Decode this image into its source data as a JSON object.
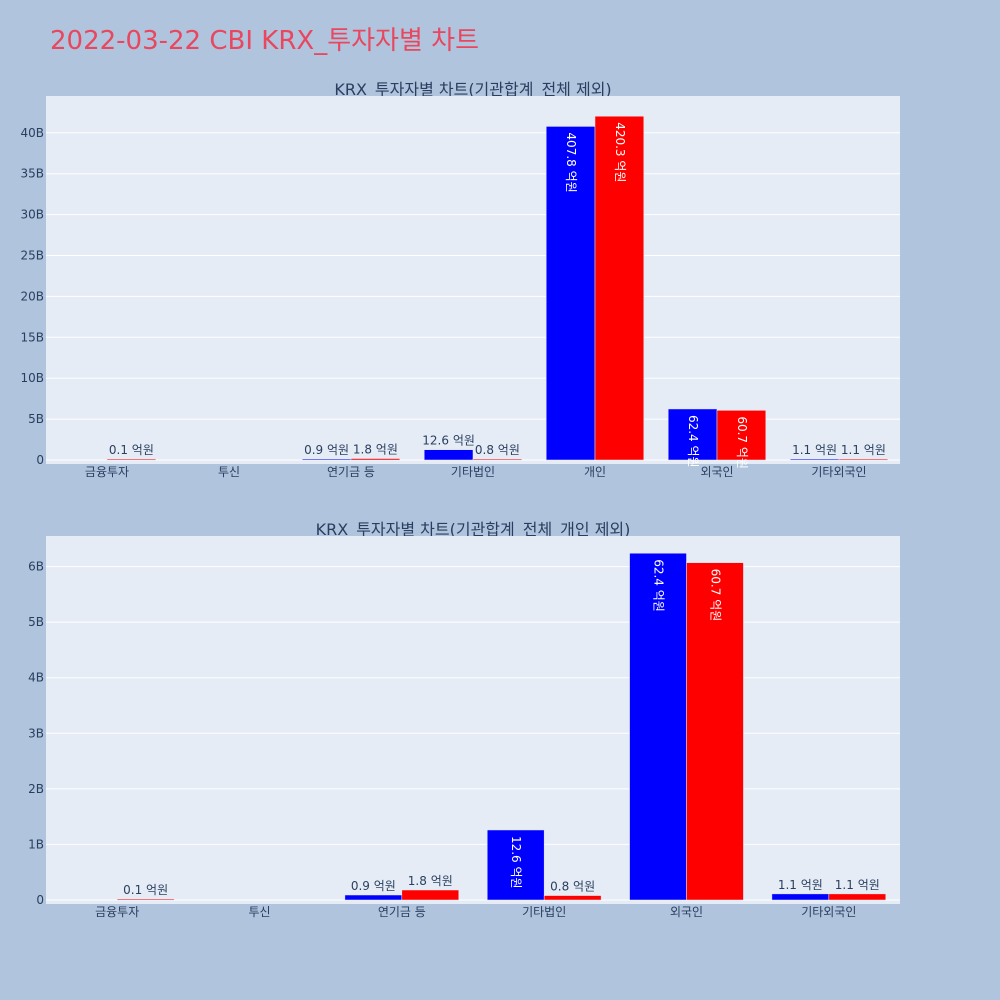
{
  "page_title": "2022-03-22 CBI KRX_투자자별 차트",
  "colors": {
    "buy": "#0000ff",
    "sell": "#ff0000",
    "plot_bg": "#e5ecf6",
    "page_bg": "#b0c4de",
    "title": "#e8475f"
  },
  "chart_data": [
    {
      "type": "bar",
      "title": "KRX_투자자별 차트(기관합계_전체 제외)",
      "categories": [
        "금융투자",
        "투신",
        "연기금 등",
        "기타법인",
        "개인",
        "외국인",
        "기타외국인"
      ],
      "series": [
        {
          "values": [
            0,
            0,
            90000000,
            1260000000,
            40780000000,
            6240000000,
            110000000
          ],
          "labels": [
            "",
            "",
            "0.9 억원",
            "12.6 억원",
            "407.8 억원",
            "62.4 억원",
            "1.1 억원"
          ]
        },
        {
          "values": [
            10000000,
            0,
            180000000,
            80000000,
            42030000000,
            6070000000,
            110000000
          ],
          "labels": [
            "0.1 억원",
            "",
            "1.8 억원",
            "0.8 억원",
            "420.3 억원",
            "60.7 억원",
            "1.1 억원"
          ]
        }
      ],
      "yticks": [
        "0",
        "5B",
        "10B",
        "15B",
        "20B",
        "25B",
        "30B",
        "35B",
        "40B"
      ],
      "ylim": [
        0,
        44500000000
      ],
      "grid": true
    },
    {
      "type": "bar",
      "title": "KRX_투자자별 차트(기관합계_전체_개인 제외)",
      "categories": [
        "금융투자",
        "투신",
        "연기금 등",
        "기타법인",
        "외국인",
        "기타외국인"
      ],
      "series": [
        {
          "values": [
            0,
            0,
            90000000,
            1260000000,
            6240000000,
            110000000
          ],
          "labels": [
            "",
            "",
            "0.9 억원",
            "12.6 억원",
            "62.4 억원",
            "1.1 억원"
          ]
        },
        {
          "values": [
            10000000,
            0,
            180000000,
            80000000,
            6070000000,
            110000000
          ],
          "labels": [
            "0.1 억원",
            "",
            "1.8 억원",
            "0.8 억원",
            "60.7 억원",
            "1.1 억원"
          ]
        }
      ],
      "yticks": [
        "0",
        "1B",
        "2B",
        "3B",
        "4B",
        "5B",
        "6B"
      ],
      "ylim": [
        0,
        6550000000
      ],
      "grid": true
    }
  ]
}
